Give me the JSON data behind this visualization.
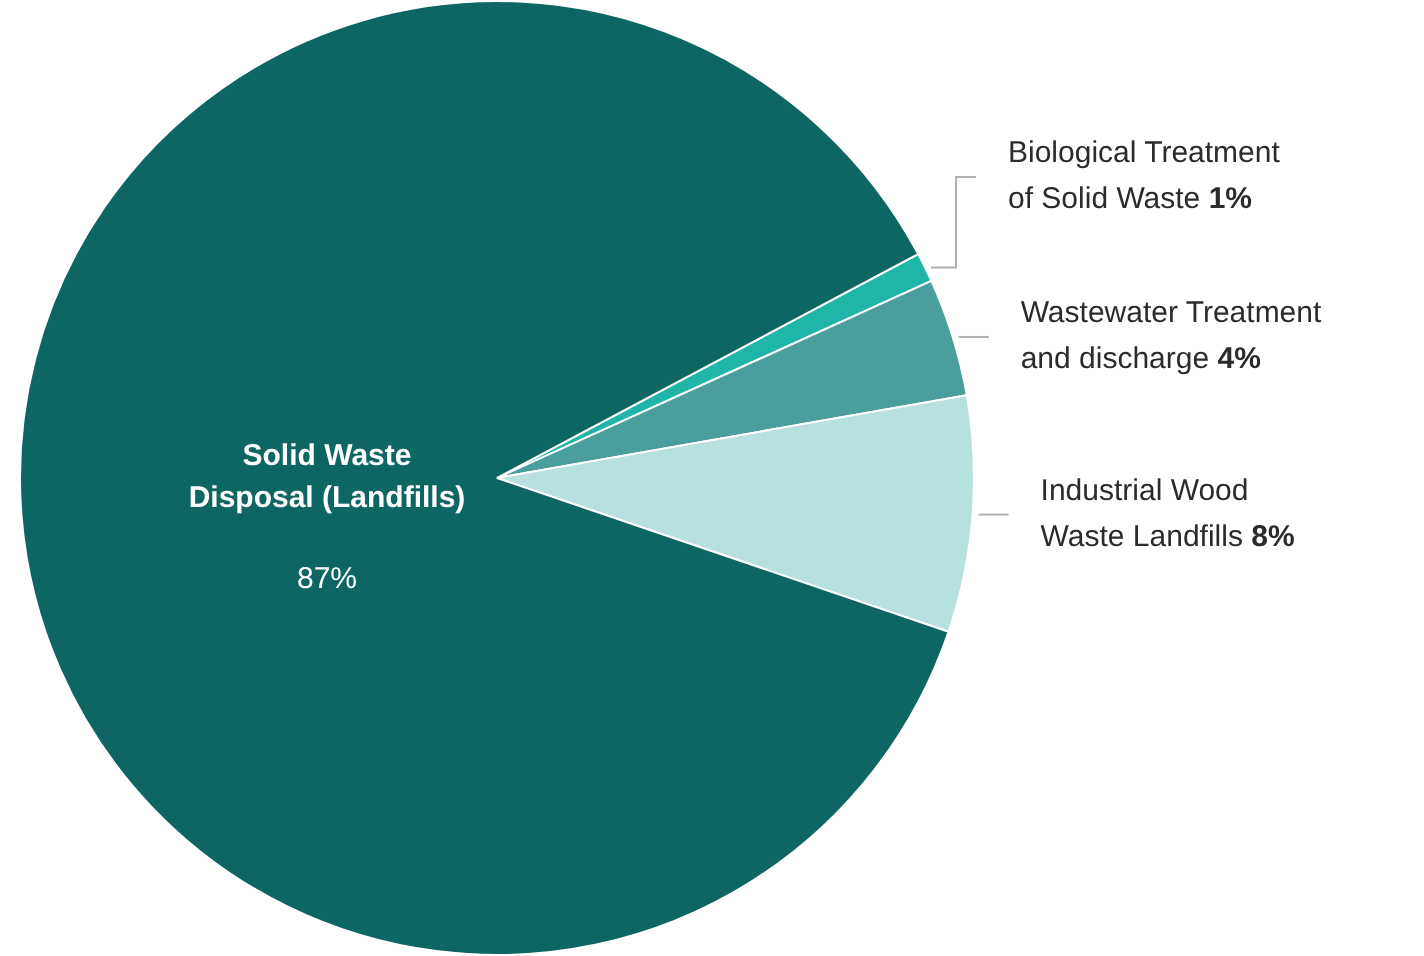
{
  "chart_data": {
    "type": "pie",
    "categories": [
      "Biological Treatment of Solid Waste",
      "Wastewater Treatment and discharge",
      "Industrial Wood Waste Landfills",
      "Solid Waste Disposal (Landfills)"
    ],
    "values": [
      1,
      4,
      8,
      87
    ],
    "colors": [
      "#1fb5a8",
      "#4a9e9c",
      "#b6e1df",
      "#0e6663"
    ],
    "value_labels": [
      "1%",
      "4%",
      "8%",
      "87%"
    ],
    "legend": false
  }
}
